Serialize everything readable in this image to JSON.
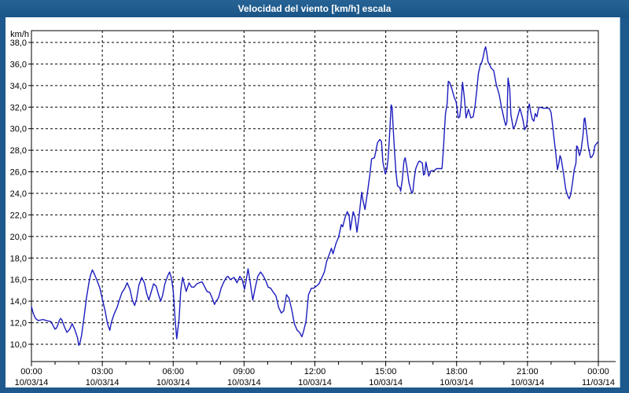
{
  "window": {
    "title": "Velocidad del viento [km/h] escala",
    "chrome_color": "#1d598c"
  },
  "chart_data": {
    "type": "line",
    "title": "Velocidad del viento [km/h] escala",
    "ylabel": "km/h",
    "ylim": [
      10,
      38
    ],
    "xlim_hours": [
      0,
      24
    ],
    "grid": "dashed",
    "legend": "none",
    "line_color": "#1c1cbe",
    "y_ticks": [
      {
        "value": 38,
        "label": "38,0"
      },
      {
        "value": 36,
        "label": "36,0"
      },
      {
        "value": 34,
        "label": "34,0"
      },
      {
        "value": 32,
        "label": "32,0"
      },
      {
        "value": 30,
        "label": "30,0"
      },
      {
        "value": 28,
        "label": "28,0"
      },
      {
        "value": 26,
        "label": "26,0"
      },
      {
        "value": 24,
        "label": "24,0"
      },
      {
        "value": 22,
        "label": "22,0"
      },
      {
        "value": 20,
        "label": "20,0"
      },
      {
        "value": 18,
        "label": "18,0"
      },
      {
        "value": 16,
        "label": "16,0"
      },
      {
        "value": 14,
        "label": "14,0"
      },
      {
        "value": 12,
        "label": "12,0"
      },
      {
        "value": 10,
        "label": "10,0"
      }
    ],
    "x_ticks": [
      {
        "hour": 0,
        "label": "00:00",
        "date": "10/03/14"
      },
      {
        "hour": 3,
        "label": "03:00",
        "date": "10/03/14"
      },
      {
        "hour": 6,
        "label": "06:00",
        "date": "10/03/14"
      },
      {
        "hour": 9,
        "label": "09:00",
        "date": "10/03/14"
      },
      {
        "hour": 12,
        "label": "12:00",
        "date": "10/03/14"
      },
      {
        "hour": 15,
        "label": "15:00",
        "date": "10/03/14"
      },
      {
        "hour": 18,
        "label": "18:00",
        "date": "10/03/14"
      },
      {
        "hour": 21,
        "label": "21:00",
        "date": "10/03/14"
      },
      {
        "hour": 24,
        "label": "00:00",
        "date": "11/03/14"
      }
    ],
    "series": [
      {
        "name": "Velocidad del viento",
        "points": [
          [
            0.0,
            13.5
          ],
          [
            0.07,
            12.9
          ],
          [
            0.17,
            12.4
          ],
          [
            0.28,
            12.2
          ],
          [
            0.5,
            12.3
          ],
          [
            0.62,
            12.2
          ],
          [
            0.83,
            12.1
          ],
          [
            0.95,
            11.6
          ],
          [
            1.0,
            11.4
          ],
          [
            1.06,
            11.5
          ],
          [
            1.12,
            11.8
          ],
          [
            1.18,
            12.2
          ],
          [
            1.23,
            12.4
          ],
          [
            1.28,
            12.3
          ],
          [
            1.4,
            11.6
          ],
          [
            1.5,
            11.1
          ],
          [
            1.62,
            11.4
          ],
          [
            1.72,
            11.9
          ],
          [
            1.83,
            11.4
          ],
          [
            1.95,
            10.6
          ],
          [
            2.0,
            9.9
          ],
          [
            2.05,
            10.1
          ],
          [
            2.12,
            10.8
          ],
          [
            2.22,
            12.4
          ],
          [
            2.33,
            14.3
          ],
          [
            2.44,
            15.8
          ],
          [
            2.5,
            16.4
          ],
          [
            2.58,
            16.9
          ],
          [
            2.67,
            16.5
          ],
          [
            2.78,
            15.9
          ],
          [
            2.9,
            15.2
          ],
          [
            3.0,
            14.2
          ],
          [
            3.12,
            13.1
          ],
          [
            3.22,
            11.9
          ],
          [
            3.32,
            11.3
          ],
          [
            3.38,
            12.0
          ],
          [
            3.5,
            12.8
          ],
          [
            3.62,
            13.4
          ],
          [
            3.72,
            14.1
          ],
          [
            3.83,
            14.8
          ],
          [
            3.95,
            15.2
          ],
          [
            4.05,
            15.7
          ],
          [
            4.17,
            15.1
          ],
          [
            4.27,
            14.1
          ],
          [
            4.37,
            13.6
          ],
          [
            4.45,
            14.2
          ],
          [
            4.55,
            15.5
          ],
          [
            4.67,
            16.2
          ],
          [
            4.78,
            15.7
          ],
          [
            4.88,
            14.7
          ],
          [
            4.97,
            14.1
          ],
          [
            5.05,
            14.7
          ],
          [
            5.17,
            15.6
          ],
          [
            5.28,
            15.4
          ],
          [
            5.38,
            14.6
          ],
          [
            5.47,
            14.0
          ],
          [
            5.55,
            14.5
          ],
          [
            5.65,
            15.6
          ],
          [
            5.78,
            16.4
          ],
          [
            5.85,
            16.7
          ],
          [
            5.93,
            16.1
          ],
          [
            6.0,
            15.0
          ],
          [
            6.08,
            12.3
          ],
          [
            6.15,
            10.5
          ],
          [
            6.25,
            12.4
          ],
          [
            6.32,
            15.0
          ],
          [
            6.4,
            16.2
          ],
          [
            6.55,
            14.9
          ],
          [
            6.67,
            15.7
          ],
          [
            6.78,
            15.3
          ],
          [
            6.88,
            15.3
          ],
          [
            7.0,
            15.6
          ],
          [
            7.1,
            15.7
          ],
          [
            7.22,
            15.8
          ],
          [
            7.32,
            15.4
          ],
          [
            7.43,
            14.9
          ],
          [
            7.55,
            14.8
          ],
          [
            7.65,
            14.3
          ],
          [
            7.75,
            13.7
          ],
          [
            7.82,
            14.0
          ],
          [
            7.92,
            14.3
          ],
          [
            8.03,
            15.2
          ],
          [
            8.15,
            15.8
          ],
          [
            8.25,
            16.2
          ],
          [
            8.32,
            16.3
          ],
          [
            8.42,
            16.0
          ],
          [
            8.58,
            16.2
          ],
          [
            8.7,
            15.7
          ],
          [
            8.82,
            16.3
          ],
          [
            8.92,
            16.0
          ],
          [
            9.02,
            15.1
          ],
          [
            9.08,
            15.8
          ],
          [
            9.17,
            17.0
          ],
          [
            9.25,
            15.9
          ],
          [
            9.37,
            14.1
          ],
          [
            9.47,
            15.2
          ],
          [
            9.58,
            16.3
          ],
          [
            9.7,
            16.7
          ],
          [
            9.8,
            16.4
          ],
          [
            9.92,
            15.9
          ],
          [
            10.02,
            15.3
          ],
          [
            10.13,
            15.2
          ],
          [
            10.25,
            14.8
          ],
          [
            10.35,
            14.5
          ],
          [
            10.47,
            13.4
          ],
          [
            10.58,
            12.9
          ],
          [
            10.68,
            13.1
          ],
          [
            10.8,
            14.6
          ],
          [
            10.9,
            14.3
          ],
          [
            11.02,
            13.2
          ],
          [
            11.13,
            11.9
          ],
          [
            11.25,
            11.3
          ],
          [
            11.35,
            11.1
          ],
          [
            11.45,
            10.7
          ],
          [
            11.52,
            11.2
          ],
          [
            11.62,
            12.1
          ],
          [
            11.73,
            14.6
          ],
          [
            11.85,
            15.2
          ],
          [
            11.95,
            15.2
          ],
          [
            12.07,
            15.4
          ],
          [
            12.17,
            15.6
          ],
          [
            12.28,
            16.1
          ],
          [
            12.4,
            16.7
          ],
          [
            12.5,
            17.7
          ],
          [
            12.62,
            18.4
          ],
          [
            12.7,
            18.9
          ],
          [
            12.77,
            18.4
          ],
          [
            12.9,
            19.4
          ],
          [
            13.0,
            19.9
          ],
          [
            13.12,
            21.1
          ],
          [
            13.18,
            20.9
          ],
          [
            13.28,
            21.8
          ],
          [
            13.37,
            22.3
          ],
          [
            13.45,
            21.9
          ],
          [
            13.5,
            20.6
          ],
          [
            13.62,
            22.3
          ],
          [
            13.7,
            21.8
          ],
          [
            13.78,
            20.4
          ],
          [
            13.88,
            22.1
          ],
          [
            13.98,
            24.1
          ],
          [
            14.03,
            23.4
          ],
          [
            14.12,
            22.5
          ],
          [
            14.2,
            23.7
          ],
          [
            14.27,
            24.8
          ],
          [
            14.33,
            25.8
          ],
          [
            14.4,
            27.2
          ],
          [
            14.52,
            27.3
          ],
          [
            14.57,
            27.8
          ],
          [
            14.65,
            28.7
          ],
          [
            14.75,
            29.0
          ],
          [
            14.82,
            28.8
          ],
          [
            14.88,
            26.9
          ],
          [
            14.98,
            25.8
          ],
          [
            15.05,
            26.3
          ],
          [
            15.1,
            27.2
          ],
          [
            15.15,
            28.9
          ],
          [
            15.23,
            32.2
          ],
          [
            15.27,
            32.0
          ],
          [
            15.32,
            29.9
          ],
          [
            15.38,
            27.7
          ],
          [
            15.43,
            26.0
          ],
          [
            15.5,
            24.7
          ],
          [
            15.6,
            24.5
          ],
          [
            15.63,
            24.2
          ],
          [
            15.7,
            25.3
          ],
          [
            15.77,
            27.0
          ],
          [
            15.82,
            27.3
          ],
          [
            15.88,
            26.6
          ],
          [
            15.98,
            25.0
          ],
          [
            16.1,
            24.0
          ],
          [
            16.15,
            24.2
          ],
          [
            16.2,
            25.3
          ],
          [
            16.27,
            26.3
          ],
          [
            16.38,
            26.9
          ],
          [
            16.43,
            27.0
          ],
          [
            16.55,
            26.8
          ],
          [
            16.6,
            25.7
          ],
          [
            16.65,
            25.8
          ],
          [
            16.7,
            26.9
          ],
          [
            16.82,
            25.6
          ],
          [
            16.92,
            26.1
          ],
          [
            17.05,
            26.1
          ],
          [
            17.15,
            26.3
          ],
          [
            17.38,
            26.3
          ],
          [
            17.43,
            27.7
          ],
          [
            17.48,
            29.6
          ],
          [
            17.53,
            31.4
          ],
          [
            17.6,
            32.3
          ],
          [
            17.65,
            34.4
          ],
          [
            17.7,
            34.3
          ],
          [
            17.8,
            33.7
          ],
          [
            17.9,
            32.9
          ],
          [
            17.98,
            32.5
          ],
          [
            18.07,
            31.0
          ],
          [
            18.13,
            31.1
          ],
          [
            18.18,
            32.1
          ],
          [
            18.25,
            34.3
          ],
          [
            18.32,
            33.0
          ],
          [
            18.4,
            31.0
          ],
          [
            18.5,
            31.8
          ],
          [
            18.6,
            31.0
          ],
          [
            18.7,
            31.1
          ],
          [
            18.78,
            32.1
          ],
          [
            18.85,
            33.5
          ],
          [
            18.92,
            35.1
          ],
          [
            19.0,
            35.9
          ],
          [
            19.07,
            36.2
          ],
          [
            19.13,
            36.7
          ],
          [
            19.18,
            37.3
          ],
          [
            19.23,
            37.6
          ],
          [
            19.28,
            37.0
          ],
          [
            19.33,
            36.2
          ],
          [
            19.38,
            36.0
          ],
          [
            19.47,
            35.6
          ],
          [
            19.57,
            35.4
          ],
          [
            19.68,
            34.1
          ],
          [
            19.8,
            33.2
          ],
          [
            19.9,
            32.0
          ],
          [
            20.02,
            30.8
          ],
          [
            20.08,
            30.3
          ],
          [
            20.13,
            30.6
          ],
          [
            20.18,
            34.7
          ],
          [
            20.25,
            33.7
          ],
          [
            20.3,
            31.3
          ],
          [
            20.4,
            30.0
          ],
          [
            20.48,
            30.3
          ],
          [
            20.58,
            31.1
          ],
          [
            20.68,
            31.9
          ],
          [
            20.8,
            30.9
          ],
          [
            20.88,
            29.9
          ],
          [
            20.97,
            30.3
          ],
          [
            21.03,
            31.9
          ],
          [
            21.08,
            32.3
          ],
          [
            21.13,
            31.6
          ],
          [
            21.2,
            30.9
          ],
          [
            21.27,
            30.7
          ],
          [
            21.33,
            31.4
          ],
          [
            21.4,
            31.1
          ],
          [
            21.47,
            31.9
          ],
          [
            21.53,
            32.0
          ],
          [
            21.67,
            31.9
          ],
          [
            21.8,
            31.9
          ],
          [
            21.92,
            31.9
          ],
          [
            22.0,
            31.5
          ],
          [
            22.07,
            30.2
          ],
          [
            22.13,
            29.0
          ],
          [
            22.2,
            27.7
          ],
          [
            22.27,
            26.2
          ],
          [
            22.33,
            26.8
          ],
          [
            22.38,
            27.5
          ],
          [
            22.43,
            27.2
          ],
          [
            22.48,
            26.5
          ],
          [
            22.53,
            25.8
          ],
          [
            22.62,
            24.4
          ],
          [
            22.7,
            23.8
          ],
          [
            22.77,
            23.5
          ],
          [
            22.83,
            23.9
          ],
          [
            22.9,
            24.9
          ],
          [
            22.98,
            26.2
          ],
          [
            23.05,
            26.8
          ],
          [
            23.08,
            28.4
          ],
          [
            23.12,
            28.3
          ],
          [
            23.17,
            27.8
          ],
          [
            23.2,
            27.5
          ],
          [
            23.27,
            28.0
          ],
          [
            23.35,
            29.4
          ],
          [
            23.4,
            30.9
          ],
          [
            23.43,
            31.0
          ],
          [
            23.48,
            30.1
          ],
          [
            23.57,
            28.4
          ],
          [
            23.67,
            27.3
          ],
          [
            23.73,
            27.4
          ],
          [
            23.8,
            27.7
          ],
          [
            23.85,
            28.4
          ],
          [
            23.92,
            28.6
          ],
          [
            24.0,
            28.8
          ]
        ]
      }
    ]
  }
}
